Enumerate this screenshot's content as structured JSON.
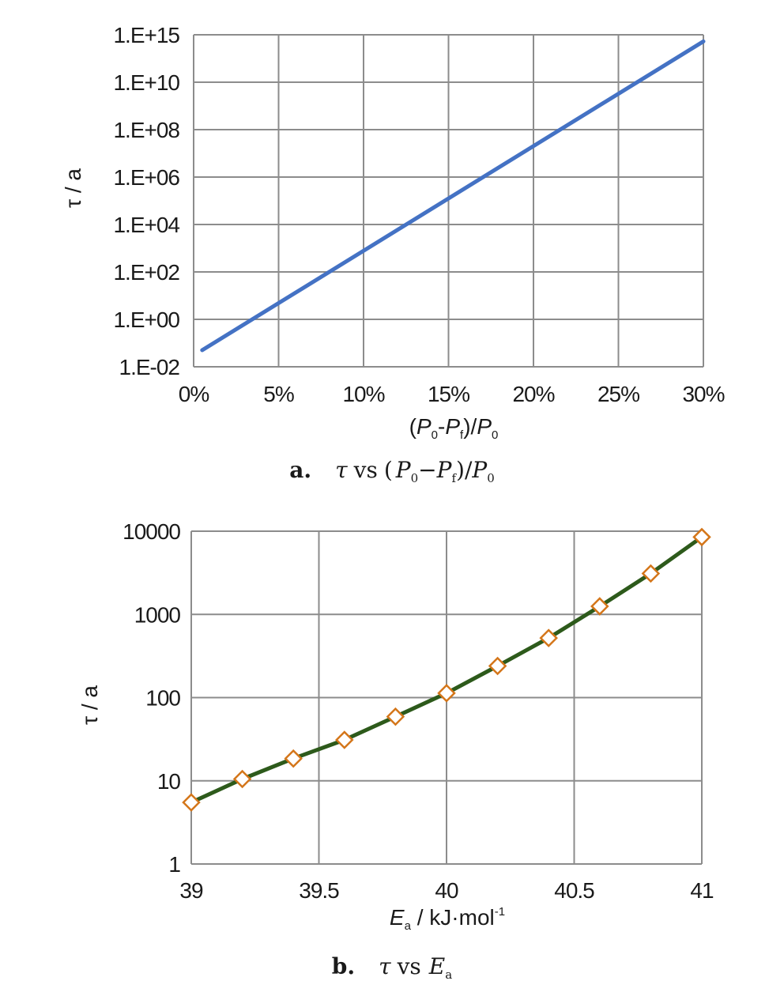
{
  "chart_data": [
    {
      "type": "line",
      "ylabel": "τ / a",
      "xlabel": "(P0-Pf)/P0",
      "caption": {
        "letter": "a.",
        "text": "τ vs (P0−Pf)/P0"
      },
      "y_scale": "log",
      "ylim": [
        0.01,
        1000000000000000.0
      ],
      "x_ticks": [
        "0%",
        "5%",
        "10%",
        "15%",
        "20%",
        "25%",
        "30%"
      ],
      "x_tick_values": [
        0,
        0.05,
        0.1,
        0.15,
        0.2,
        0.25,
        0.3
      ],
      "y_ticks": [
        "1.E-02",
        "1.E+00",
        "1.E+02",
        "1.E+04",
        "1.E+06",
        "1.E+08",
        "1.E+10",
        "1.E+15"
      ],
      "grid": true,
      "series": [
        {
          "color": "#4472c4",
          "x": [
            0.005,
            0.3
          ],
          "y": [
            0.05,
            200000000000000.0
          ]
        }
      ]
    },
    {
      "type": "line",
      "ylabel": "τ / a",
      "xlabel": "Ea / kJ·mol-1",
      "caption": {
        "letter": "b.",
        "text": "τ vs Ea"
      },
      "y_scale": "log",
      "ylim": [
        1,
        10000
      ],
      "xlim": [
        39,
        41
      ],
      "x_ticks": [
        "39",
        "39.5",
        "40",
        "40.5",
        "41"
      ],
      "y_ticks": [
        "1",
        "10",
        "100",
        "1000",
        "10000"
      ],
      "grid": true,
      "series": [
        {
          "color": "#2d5a1b",
          "marker": "diamond",
          "marker_color": "#d4761a",
          "x": [
            39.0,
            39.2,
            39.4,
            39.6,
            39.8,
            40.0,
            40.2,
            40.4,
            40.6,
            40.8,
            41.0
          ],
          "y": [
            5.5,
            10.5,
            18.5,
            31,
            59,
            113,
            240,
            520,
            1250,
            3100,
            8500
          ]
        }
      ]
    }
  ]
}
